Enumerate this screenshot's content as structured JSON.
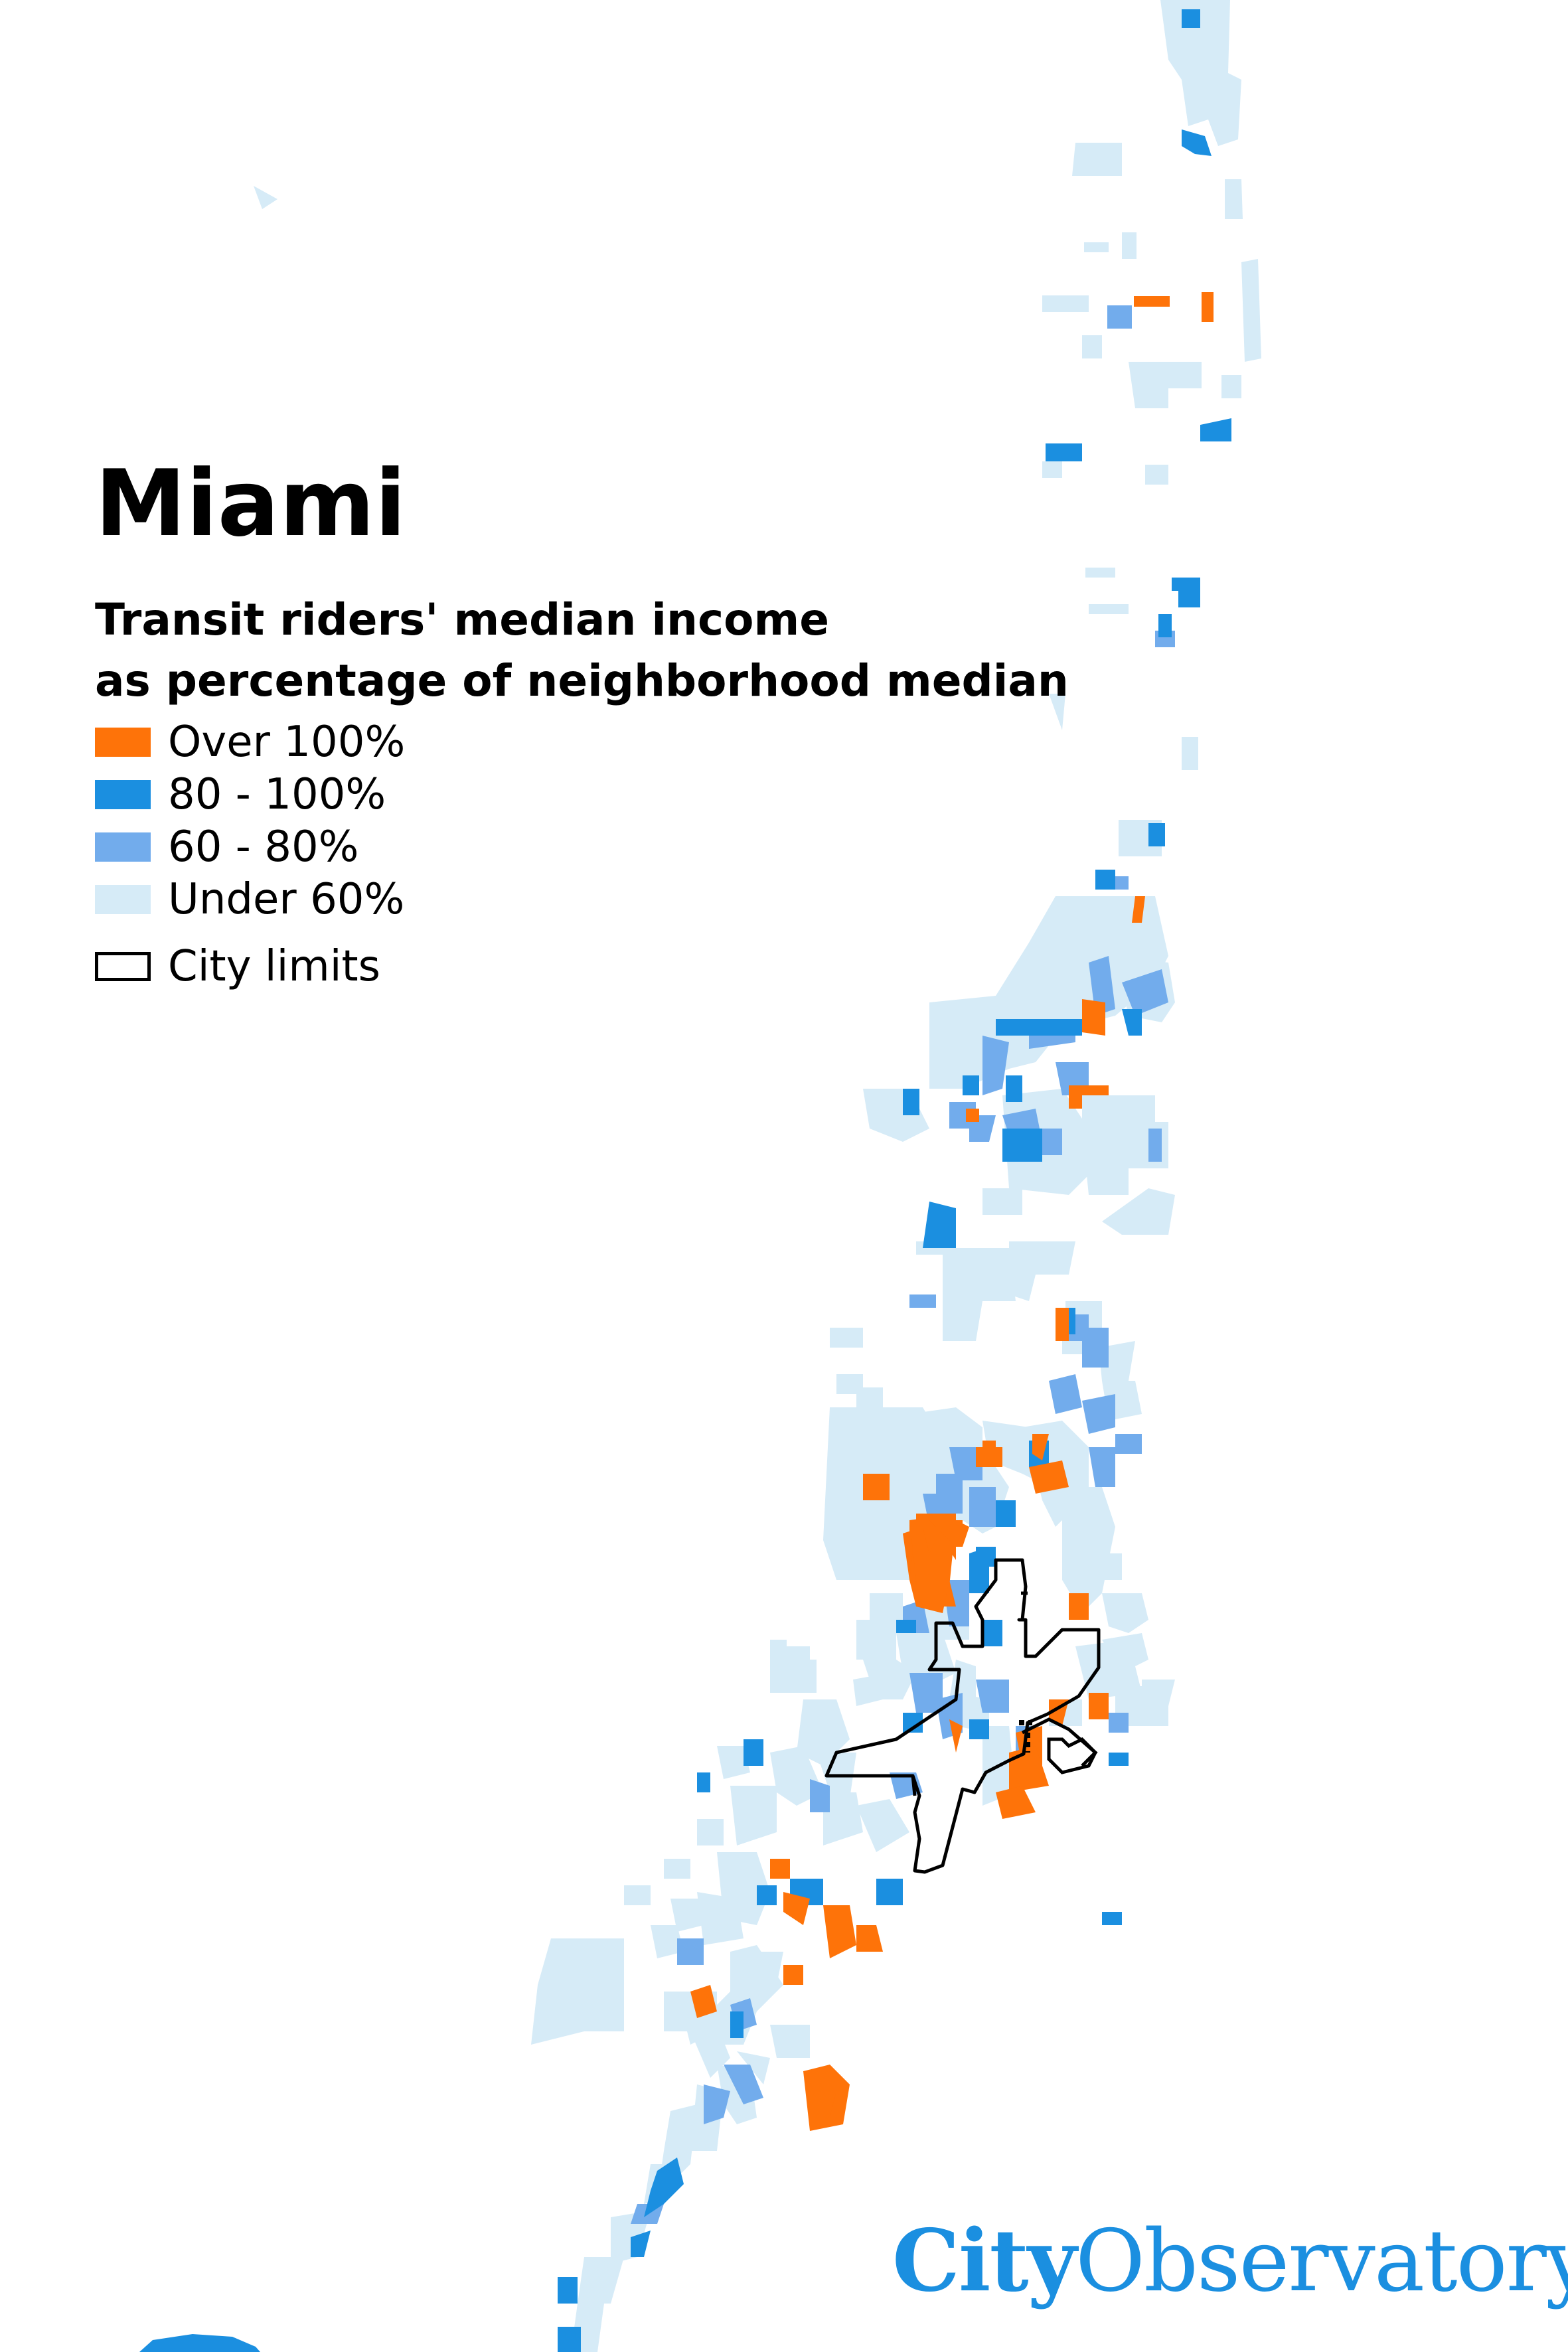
{
  "title": "Miami",
  "legend": {
    "title_line1": "Transit riders' median income",
    "title_line2": "as percentage of neighborhood median",
    "items": [
      {
        "label": "Over 100%",
        "color": "#fe7309"
      },
      {
        "label": "80 - 100%",
        "color": "#1b8fe0"
      },
      {
        "label": "60 - 80%",
        "color": "#72acec"
      },
      {
        "label": "Under 60%",
        "color": "#d6ebf7"
      }
    ],
    "city_limits_label": "City limits"
  },
  "logo": {
    "part1": "City",
    "part2": "Observatory",
    "color": "#1b8fe0"
  }
}
